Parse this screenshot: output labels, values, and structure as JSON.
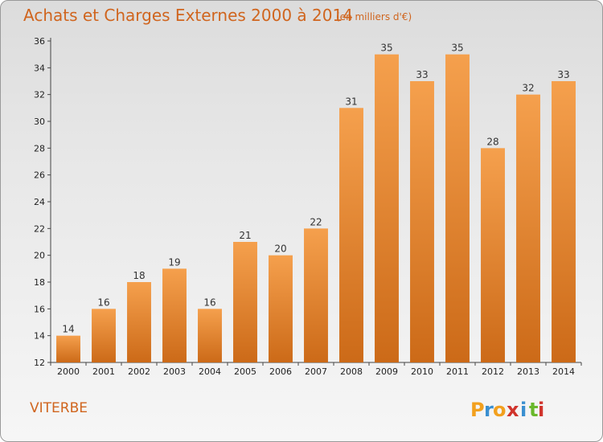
{
  "chart_data": {
    "type": "bar",
    "title": "Achats et Charges Externes 2000 à 2014",
    "subtitle": "(en milliers d'€)",
    "categories": [
      "2000",
      "2001",
      "2002",
      "2003",
      "2004",
      "2005",
      "2006",
      "2007",
      "2008",
      "2009",
      "2010",
      "2011",
      "2012",
      "2013",
      "2014"
    ],
    "values": [
      14,
      16,
      18,
      19,
      16,
      21,
      20,
      22,
      31,
      35,
      33,
      35,
      28,
      32,
      33
    ],
    "ylim": [
      12,
      36
    ],
    "yticks": [
      12,
      14,
      16,
      18,
      20,
      22,
      24,
      26,
      28,
      30,
      32,
      34,
      36
    ],
    "grid": false,
    "bar_color_light": "#f5a04d",
    "bar_color_dark": "#cc6a18",
    "title_color": "#d0651e"
  },
  "commune": "VITERBE",
  "logo": {
    "letters": [
      "P",
      "r",
      "o",
      "x",
      "i",
      "t",
      "i"
    ],
    "colors": [
      "#f2a01e",
      "#3a8fd0",
      "#f2a01e",
      "#d0342c",
      "#3a8fd0",
      "#6ab82c",
      "#d0342c"
    ]
  }
}
